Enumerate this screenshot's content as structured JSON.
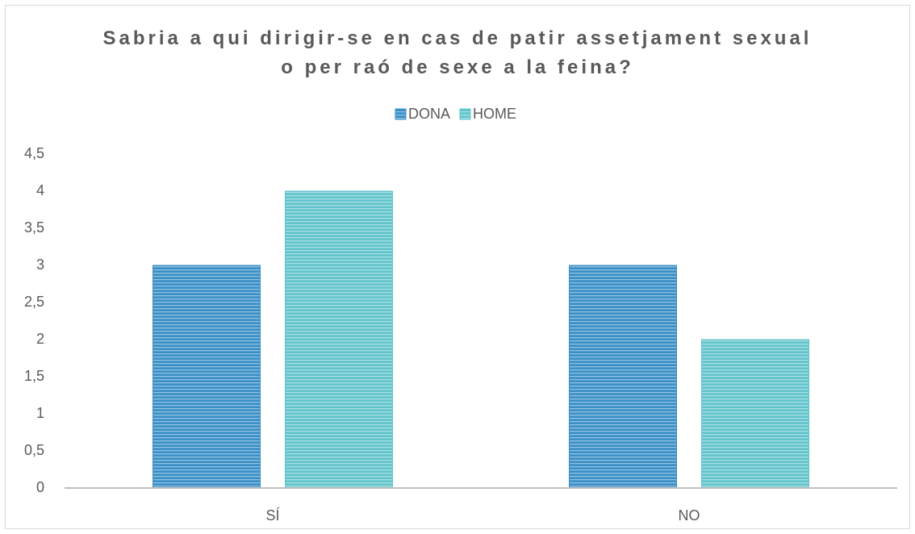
{
  "chart_data": {
    "type": "bar",
    "title": "Sabria a qui dirigir-se en cas de patir assetjament sexual o per raó de sexe a la feina?",
    "categories": [
      "SÍ",
      "NO"
    ],
    "series": [
      {
        "name": "DONA",
        "color": "#3a8fc6",
        "values": [
          3,
          3
        ]
      },
      {
        "name": "HOME",
        "color": "#62c4cb",
        "values": [
          4,
          2
        ]
      }
    ],
    "ylim": [
      0,
      4.5
    ],
    "yticks": [
      0,
      {
        "value": 0.5,
        "label": "0,5"
      },
      1,
      {
        "value": 1.5,
        "label": "1,5"
      },
      2,
      {
        "value": 2.5,
        "label": "2,5"
      },
      3,
      {
        "value": 3.5,
        "label": "3,5"
      },
      4,
      {
        "value": 4.5,
        "label": "4,5"
      }
    ],
    "legend": "top"
  }
}
